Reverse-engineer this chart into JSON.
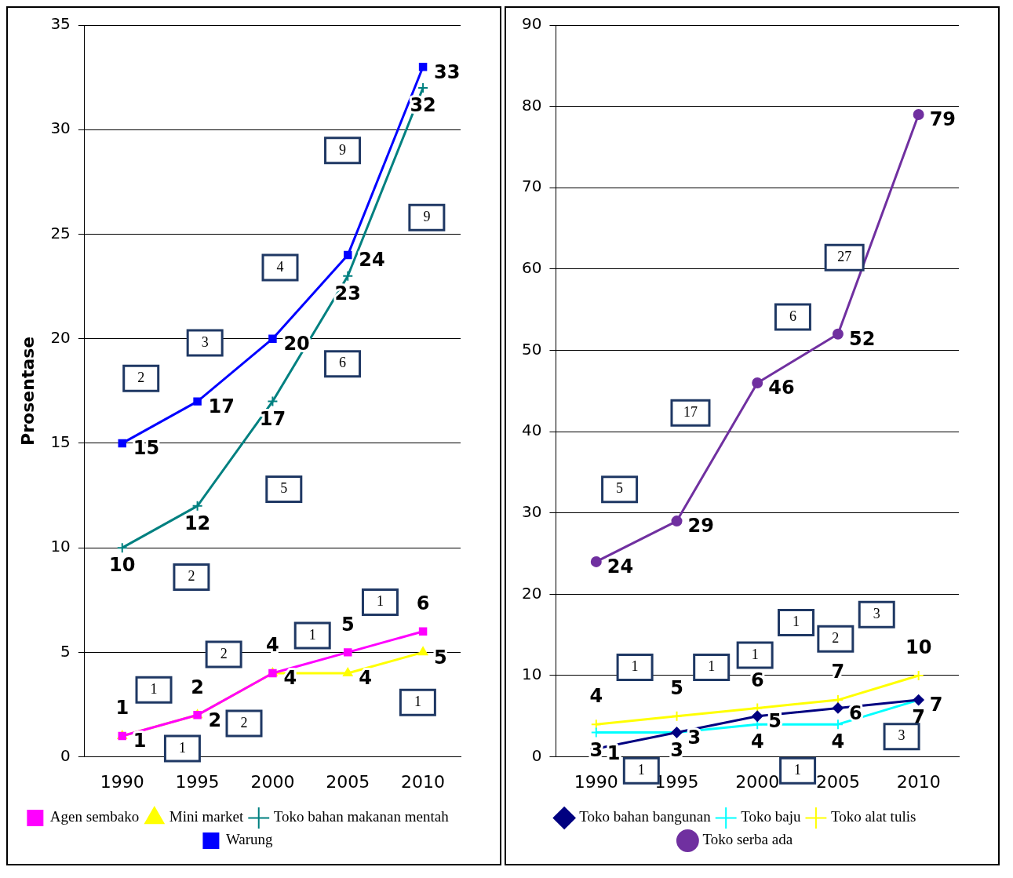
{
  "chart_data": [
    {
      "type": "line",
      "ylabel": "Prosentase",
      "x": [
        1990,
        1995,
        2000,
        2005,
        2010
      ],
      "xlim": [
        1987.5,
        2012.5
      ],
      "xticks": [
        1990,
        1995,
        2000,
        2005,
        2010
      ],
      "ylim": [
        0,
        35
      ],
      "yticks": [
        0,
        5,
        10,
        15,
        20,
        25,
        30,
        35
      ],
      "grid": "y",
      "legend": "bottom",
      "data_labels": true,
      "series": [
        {
          "name": "Agen sembako",
          "color": "#ff00ff",
          "marker": "square",
          "values": [
            1,
            2,
            4,
            5,
            6
          ]
        },
        {
          "name": "Mini market",
          "color": "#ffff00",
          "marker": "triangle",
          "values": [
            1,
            2,
            4,
            4,
            5
          ]
        },
        {
          "name": "Toko bahan makanan mentah",
          "color": "#008080",
          "marker": "cross",
          "values": [
            10,
            12,
            17,
            23,
            32
          ]
        },
        {
          "name": "Warung",
          "color": "#0000ff",
          "marker": "square",
          "values": [
            15,
            17,
            20,
            24,
            33
          ]
        }
      ],
      "annotations": [
        "2",
        "3",
        "4",
        "9",
        "2",
        "5",
        "6",
        "9",
        "1",
        "2",
        "1",
        "1",
        "1",
        "2",
        "1"
      ]
    },
    {
      "type": "line",
      "x": [
        1990,
        1995,
        2000,
        2005,
        2010
      ],
      "xlim": [
        1987.5,
        2012.5
      ],
      "xticks": [
        1990,
        1995,
        2000,
        2005,
        2010
      ],
      "ylim": [
        0,
        90
      ],
      "yticks": [
        0,
        10,
        20,
        30,
        40,
        50,
        60,
        70,
        80,
        90
      ],
      "grid": "y",
      "legend": "bottom",
      "data_labels": true,
      "series": [
        {
          "name": "Toko bahan bangunan",
          "color": "#000080",
          "marker": "diamond",
          "values": [
            1,
            3,
            5,
            6,
            7
          ]
        },
        {
          "name": "Toko baju",
          "color": "#00ffff",
          "marker": "cross",
          "values": [
            3,
            3,
            4,
            4,
            7
          ]
        },
        {
          "name": "Toko alat tulis",
          "color": "#ffff00",
          "marker": "cross",
          "values": [
            4,
            5,
            6,
            7,
            10
          ]
        },
        {
          "name": "Toko serba ada",
          "color": "#7030a0",
          "marker": "circle",
          "values": [
            24,
            29,
            46,
            52,
            79
          ]
        }
      ],
      "annotations": [
        "1",
        "1",
        "1",
        "1",
        "2",
        "3",
        "1",
        "1",
        "3",
        "5",
        "17",
        "6",
        "27"
      ]
    }
  ]
}
